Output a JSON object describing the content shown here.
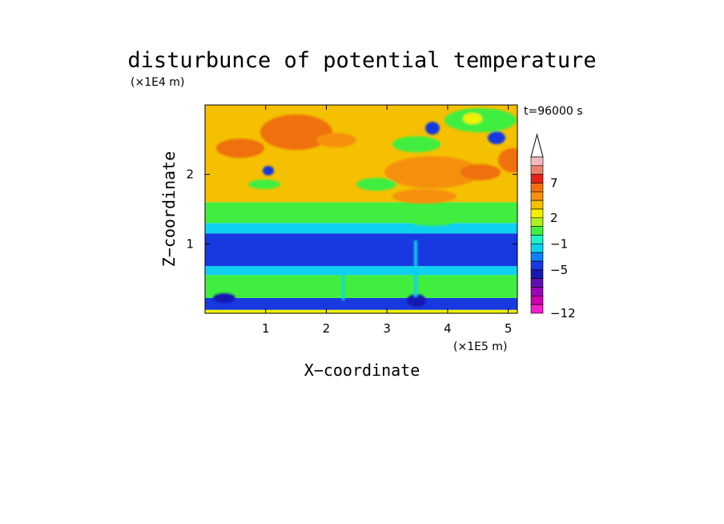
{
  "chart_data": {
    "type": "heatmap",
    "title": "disturbunce of potential temperature",
    "xlabel": "X−coordinate",
    "ylabel": "Z−coordinate",
    "x_unit": "(×1E5 m)",
    "y_unit": "(×1E4 m)",
    "time_label": "t=96000 s",
    "xlim": [
      0,
      5.15
    ],
    "ylim": [
      0,
      3.0
    ],
    "x_ticks": [
      1,
      2,
      3,
      4,
      5
    ],
    "y_ticks": [
      1,
      2
    ],
    "colorbar": {
      "levels_labeled": [
        "7",
        "2",
        "−1",
        "−5",
        "−12"
      ],
      "colors_top_to_bottom": [
        "#f4b8c0",
        "#ee8070",
        "#e8221a",
        "#f07010",
        "#f59010",
        "#f4c000",
        "#f0f000",
        "#b0f020",
        "#40ee40",
        "#20f0c8",
        "#10d0f0",
        "#1080f8",
        "#1838e0",
        "#1818b0",
        "#6010b0",
        "#9808b8",
        "#cc00b0",
        "#f020c8"
      ],
      "extend": "max"
    },
    "bands": [
      {
        "z": [
          0.0,
          0.05
        ],
        "level": 1
      },
      {
        "z": [
          0.05,
          0.22
        ],
        "level": -6
      },
      {
        "z": [
          0.22,
          0.55
        ],
        "level": 0
      },
      {
        "z": [
          0.55,
          0.68
        ],
        "level": -2
      },
      {
        "z": [
          0.68,
          1.15
        ],
        "level": -7
      },
      {
        "z": [
          1.15,
          1.3
        ],
        "level": -2
      },
      {
        "z": [
          1.3,
          1.6
        ],
        "level": 0
      },
      {
        "z": [
          1.6,
          3.0
        ],
        "level": 2
      }
    ]
  }
}
